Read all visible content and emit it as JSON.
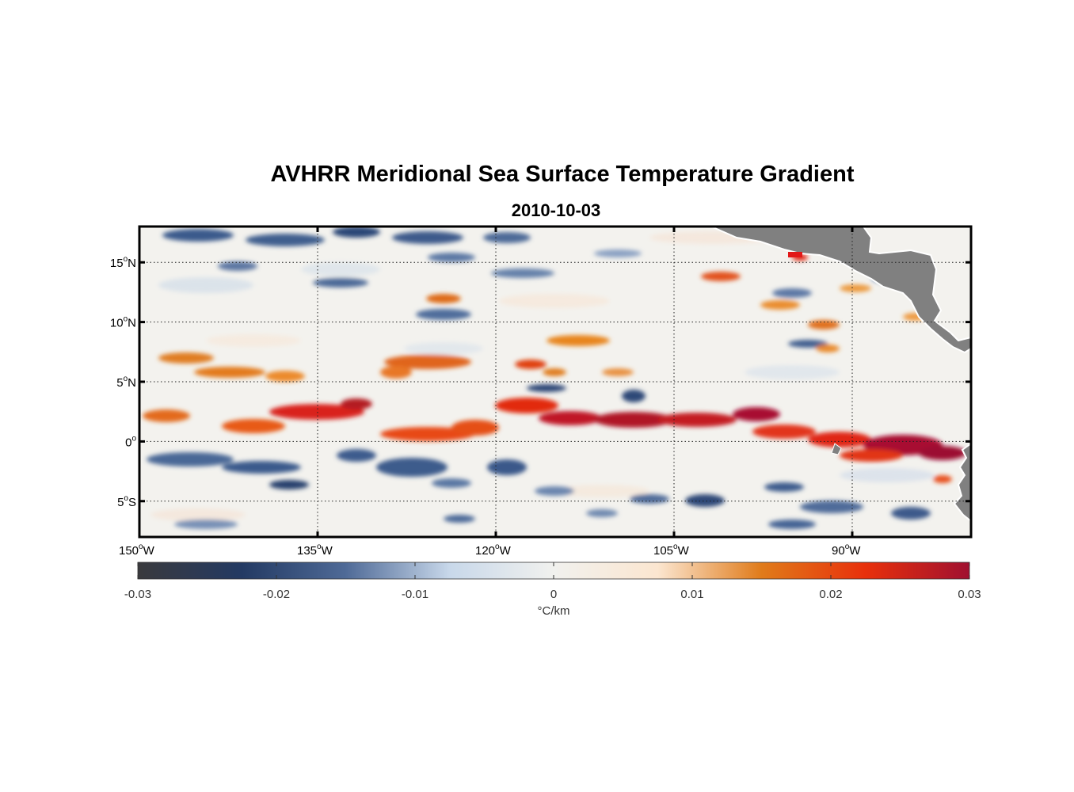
{
  "title": "AVHRR Meridional Sea Surface Temperature Gradient",
  "subtitle": "2010-10-03",
  "map": {
    "lon_range": [
      -150,
      -80
    ],
    "lat_range": [
      -8,
      18
    ],
    "lon_ticks": [
      {
        "value": -150,
        "label": "150",
        "suffix": "W"
      },
      {
        "value": -135,
        "label": "135",
        "suffix": "W"
      },
      {
        "value": -120,
        "label": "120",
        "suffix": "W"
      },
      {
        "value": -105,
        "label": "105",
        "suffix": "W"
      },
      {
        "value": -90,
        "label": "90",
        "suffix": "W"
      }
    ],
    "lat_ticks": [
      {
        "value": 15,
        "label": "15",
        "suffix": "N"
      },
      {
        "value": 10,
        "label": "10",
        "suffix": "N"
      },
      {
        "value": 5,
        "label": "5",
        "suffix": "N"
      },
      {
        "value": 0,
        "label": "0",
        "suffix": ""
      },
      {
        "value": -5,
        "label": "5",
        "suffix": "S"
      }
    ],
    "gridlines": true,
    "land_color": "#808080"
  },
  "colorbar": {
    "min": -0.03,
    "max": 0.03,
    "tick_labels": [
      "-0.03",
      "-0.02",
      "-0.01",
      "0",
      "0.01",
      "0.02",
      "0.03"
    ],
    "units": "°C/km",
    "colormap": [
      "#3a3a3d",
      "#233a63",
      "#4f6a97",
      "#c8d8ea",
      "#f1f1ee",
      "#fbe6d0",
      "#e07b1a",
      "#e8300b",
      "#a01030"
    ]
  }
}
